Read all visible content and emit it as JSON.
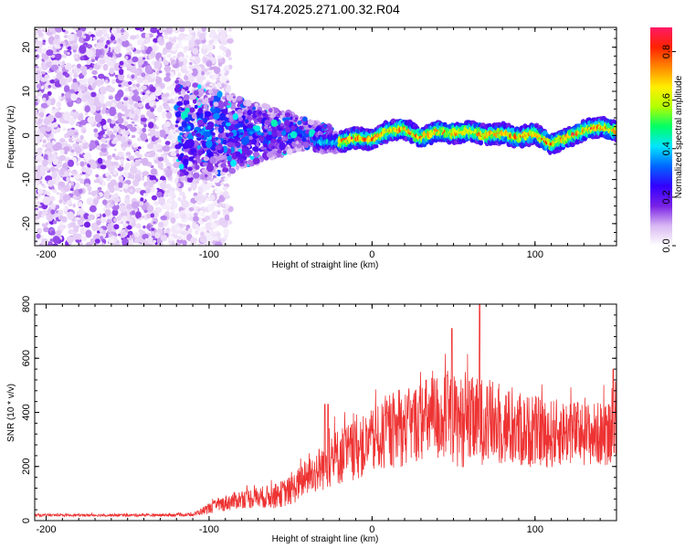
{
  "figure_title": "S174.2025.271.00.32.R04",
  "chart_data": [
    {
      "type": "heatmap",
      "title": "S174.2025.271.00.32.R04",
      "xlabel": "Height of straight line (km)",
      "ylabel": "Frequency (Hz)",
      "xlim": [
        -207,
        150
      ],
      "ylim": [
        -25,
        24.5
      ],
      "xticks": [
        -200,
        -100,
        0,
        100
      ],
      "xtick_labels": [
        "-200",
        "-100",
        "0",
        "100"
      ],
      "yticks": [
        -20,
        -10,
        0,
        10,
        20
      ],
      "ytick_labels": [
        "-20",
        "-10",
        "0",
        "10",
        "20"
      ],
      "noise_region_x": [
        -207,
        -100
      ],
      "signal_region_x": [
        -30,
        150
      ],
      "ridge": {
        "description": "Spectral ridge near 0 Hz",
        "x": [
          -30,
          -20,
          -10,
          0,
          10,
          20,
          30,
          40,
          50,
          60,
          70,
          80,
          90,
          100,
          110,
          120,
          130,
          140,
          150
        ],
        "y": [
          -1.5,
          -1.5,
          -0.5,
          -1,
          1,
          1.5,
          -0.5,
          1,
          0.5,
          1,
          0,
          0.5,
          -0.5,
          0.5,
          -2,
          -0.5,
          1,
          2,
          1
        ]
      },
      "colorbar": {
        "label": "Normalized spectral amplitude",
        "min": 0.0,
        "max": 0.9,
        "ticks": [
          0.0,
          0.2,
          0.4,
          0.6,
          0.8
        ],
        "tick_labels": [
          "0.0",
          "0.2",
          "0.4",
          "0.6",
          "0.8"
        ],
        "colors": [
          "#ffffff",
          "#d9b8f2",
          "#7a22e6",
          "#3300ff",
          "#0066ff",
          "#00e5ff",
          "#00ff66",
          "#b3ff00",
          "#ffee00",
          "#ff8800",
          "#ff2200",
          "#ff1a66"
        ]
      }
    },
    {
      "type": "line",
      "title": "",
      "xlabel": "Height of straight line (km)",
      "ylabel": "SNR (10 * v/v)",
      "xlim": [
        -207,
        150
      ],
      "ylim": [
        0,
        800
      ],
      "xticks": [
        -200,
        -100,
        0,
        100
      ],
      "xtick_labels": [
        "-200",
        "-100",
        "0",
        "100"
      ],
      "yticks": [
        0,
        200,
        400,
        600,
        800
      ],
      "ytick_labels": [
        "0",
        "200",
        "400",
        "600",
        "800"
      ],
      "color": "#ee3333",
      "series": [
        {
          "name": "SNR",
          "x": [
            -207,
            -190,
            -170,
            -150,
            -130,
            -110,
            -100,
            -90,
            -80,
            -70,
            -60,
            -50,
            -40,
            -30,
            -20,
            -10,
            0,
            10,
            20,
            30,
            40,
            50,
            60,
            70,
            80,
            90,
            100,
            110,
            120,
            130,
            140,
            150
          ],
          "y": [
            20,
            20,
            20,
            20,
            20,
            22,
            45,
            65,
            80,
            85,
            90,
            110,
            160,
            200,
            240,
            260,
            290,
            320,
            340,
            370,
            380,
            370,
            360,
            370,
            350,
            330,
            330,
            320,
            330,
            320,
            320,
            330
          ],
          "spread": [
            5,
            5,
            5,
            5,
            5,
            6,
            20,
            30,
            35,
            40,
            45,
            55,
            70,
            90,
            110,
            110,
            120,
            130,
            140,
            150,
            170,
            170,
            170,
            160,
            150,
            140,
            130,
            130,
            120,
            120,
            120,
            120
          ]
        }
      ],
      "peaks": [
        {
          "x": -29,
          "y": 430
        },
        {
          "x": -27,
          "y": 430
        },
        {
          "x": 49,
          "y": 710
        },
        {
          "x": 66,
          "y": 800
        },
        {
          "x": 148,
          "y": 560
        }
      ]
    }
  ]
}
